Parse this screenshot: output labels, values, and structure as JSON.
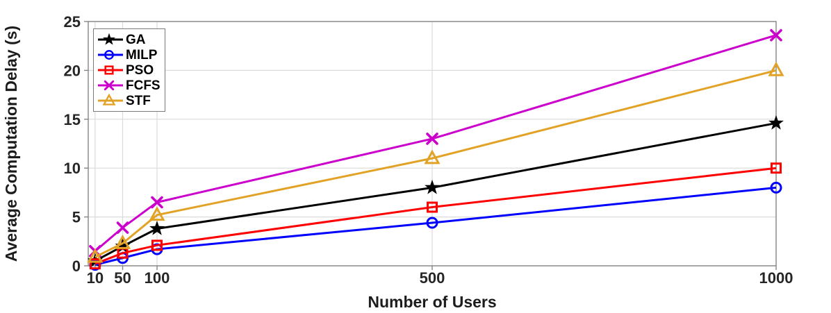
{
  "chart_data": {
    "type": "line",
    "title": "",
    "xlabel": "Number of Users",
    "ylabel": "Average Computation Delay (s)",
    "x": [
      10,
      50,
      100,
      500,
      1000
    ],
    "xticks": [
      10,
      50,
      100,
      500,
      1000
    ],
    "yticks": [
      0,
      5,
      10,
      15,
      20,
      25
    ],
    "xlim": [
      0,
      1000
    ],
    "ylim": [
      0,
      25
    ],
    "grid": true,
    "legend_position": "top-left",
    "series": [
      {
        "name": "GA",
        "color": "#000000",
        "marker": "star",
        "values": [
          0.5,
          2.0,
          3.8,
          8.0,
          14.6
        ]
      },
      {
        "name": "MILP",
        "color": "#0000FF",
        "marker": "circle",
        "values": [
          0.1,
          0.8,
          1.7,
          4.4,
          8.0
        ]
      },
      {
        "name": "PSO",
        "color": "#FF0000",
        "marker": "square",
        "values": [
          0.2,
          1.3,
          2.1,
          6.0,
          10.0
        ]
      },
      {
        "name": "FCFS",
        "color": "#CC00CC",
        "marker": "x",
        "values": [
          1.5,
          3.9,
          6.5,
          13.0,
          23.6
        ]
      },
      {
        "name": "STF",
        "color": "#E2A226",
        "marker": "triangle",
        "values": [
          0.9,
          2.3,
          5.2,
          11.0,
          20.0
        ]
      }
    ],
    "style": {
      "grid_color": "#dadada",
      "box_color": "#858585",
      "text_color": "#262626"
    }
  }
}
